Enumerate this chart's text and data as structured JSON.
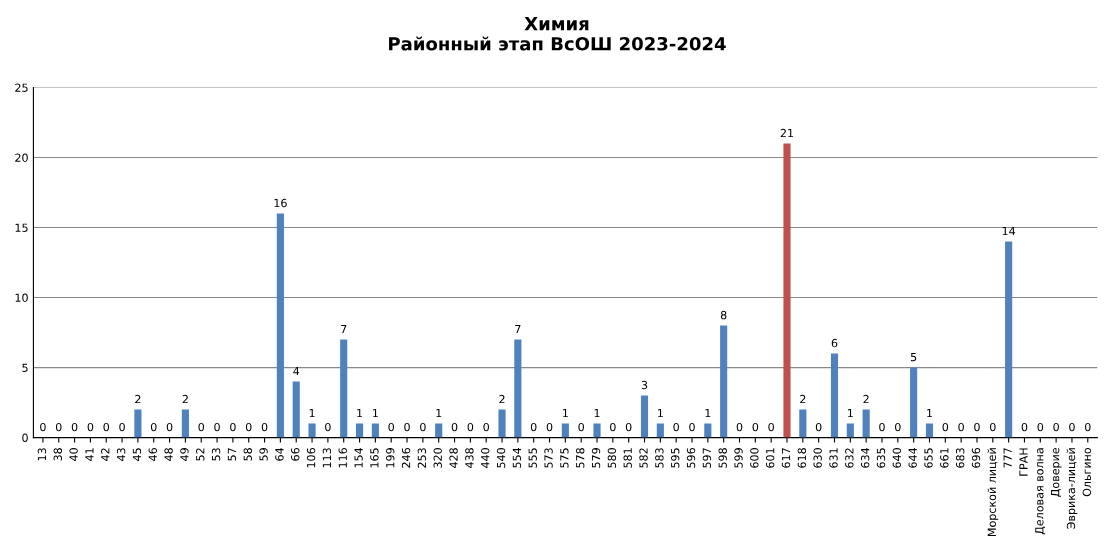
{
  "chart_data": {
    "type": "bar",
    "title": "Химия\nРайонный этап ВсОШ 2023-2024",
    "categories": [
      "13",
      "38",
      "40",
      "41",
      "42",
      "43",
      "45",
      "46",
      "48",
      "49",
      "52",
      "53",
      "57",
      "58",
      "59",
      "64",
      "66",
      "106",
      "113",
      "116",
      "154",
      "165",
      "199",
      "246",
      "253",
      "320",
      "428",
      "438",
      "440",
      "540",
      "554",
      "555",
      "573",
      "575",
      "578",
      "579",
      "580",
      "581",
      "582",
      "583",
      "595",
      "596",
      "597",
      "598",
      "599",
      "600",
      "601",
      "617",
      "618",
      "630",
      "631",
      "632",
      "634",
      "635",
      "640",
      "644",
      "655",
      "661",
      "683",
      "696",
      "Морской лицей",
      "777",
      "ГРАН",
      "Деловая волна",
      "Доверие",
      "Эврика-лицей",
      "Ольгино"
    ],
    "values": [
      0,
      0,
      0,
      0,
      0,
      0,
      2,
      0,
      0,
      2,
      0,
      0,
      0,
      0,
      0,
      16,
      4,
      1,
      0,
      7,
      1,
      1,
      0,
      0,
      0,
      1,
      0,
      0,
      0,
      2,
      7,
      0,
      0,
      1,
      0,
      1,
      0,
      0,
      3,
      1,
      0,
      0,
      1,
      8,
      0,
      0,
      0,
      21,
      2,
      0,
      6,
      1,
      2,
      0,
      0,
      5,
      1,
      0,
      0,
      0,
      0,
      14,
      0,
      0,
      0,
      0,
      0
    ],
    "colors": [
      "#4f81bd",
      "#4f81bd",
      "#4f81bd",
      "#4f81bd",
      "#4f81bd",
      "#4f81bd",
      "#4f81bd",
      "#4f81bd",
      "#4f81bd",
      "#4f81bd",
      "#4f81bd",
      "#4f81bd",
      "#4f81bd",
      "#4f81bd",
      "#4f81bd",
      "#4f81bd",
      "#4f81bd",
      "#4f81bd",
      "#4f81bd",
      "#4f81bd",
      "#4f81bd",
      "#4f81bd",
      "#4f81bd",
      "#4f81bd",
      "#4f81bd",
      "#4f81bd",
      "#4f81bd",
      "#4f81bd",
      "#4f81bd",
      "#4f81bd",
      "#4f81bd",
      "#4f81bd",
      "#4f81bd",
      "#4f81bd",
      "#4f81bd",
      "#4f81bd",
      "#4f81bd",
      "#4f81bd",
      "#4f81bd",
      "#4f81bd",
      "#4f81bd",
      "#4f81bd",
      "#4f81bd",
      "#4f81bd",
      "#4f81bd",
      "#4f81bd",
      "#4f81bd",
      "#c0504d",
      "#4f81bd",
      "#4f81bd",
      "#4f81bd",
      "#4f81bd",
      "#4f81bd",
      "#4f81bd",
      "#4f81bd",
      "#4f81bd",
      "#4f81bd",
      "#4f81bd",
      "#4f81bd",
      "#4f81bd",
      "#4f81bd",
      "#4f81bd",
      "#4f81bd",
      "#4f81bd",
      "#4f81bd",
      "#4f81bd",
      "#4f81bd"
    ],
    "ylim": [
      0,
      25
    ],
    "yticks": [
      0,
      5,
      10,
      15,
      20,
      25
    ],
    "grid": "y",
    "data_labels": true
  }
}
